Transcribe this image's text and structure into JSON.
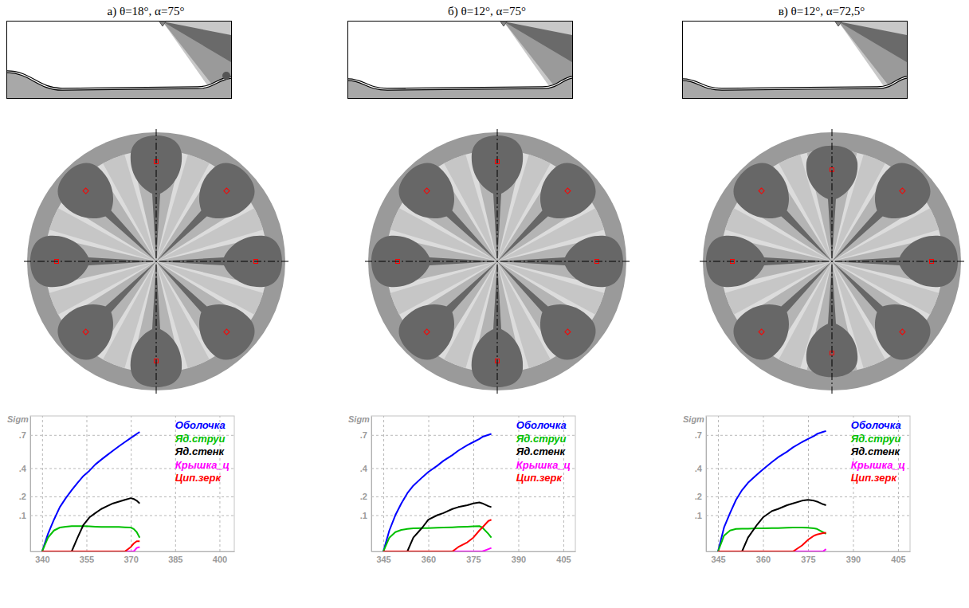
{
  "chart_data": [
    {
      "type": "line",
      "title": "а) θ=18°, α=75°",
      "ylabel": "Sigm",
      "x": [
        340,
        342,
        344,
        346,
        348,
        350,
        352,
        354,
        356,
        358,
        360,
        362,
        364,
        366,
        368,
        370,
        371,
        372,
        373
      ],
      "series": [
        {
          "name": "Оболочка",
          "color": "#0000ff",
          "values": [
            0,
            0.03,
            0.08,
            0.14,
            0.19,
            0.24,
            0.29,
            0.34,
            0.38,
            0.43,
            0.47,
            0.51,
            0.55,
            0.59,
            0.63,
            0.67,
            0.69,
            0.71,
            0.73
          ]
        },
        {
          "name": "Яд.струи",
          "color": "#00c000",
          "values": [
            0,
            0.02,
            0.04,
            0.05,
            0.053,
            0.055,
            0.055,
            0.055,
            0.054,
            0.053,
            0.052,
            0.052,
            0.052,
            0.052,
            0.051,
            0.05,
            0.045,
            0.035,
            0.02
          ]
        },
        {
          "name": "Яд.стенк",
          "color": "#000000",
          "values": [
            0,
            0,
            0,
            0,
            0,
            0,
            0.02,
            0.06,
            0.09,
            0.11,
            0.13,
            0.145,
            0.16,
            0.17,
            0.18,
            0.19,
            0.185,
            0.175,
            0.16
          ]
        },
        {
          "name": "Крышка_ц",
          "color": "#ff00ff",
          "values": [
            0,
            0,
            0,
            0,
            0,
            0,
            0,
            0,
            0,
            0,
            0,
            0,
            0,
            0,
            0,
            0,
            0,
            0.002,
            0.003
          ]
        },
        {
          "name": "Цип.зерк",
          "color": "#ff0000",
          "values": [
            0,
            0,
            0,
            0,
            0,
            0,
            0,
            0,
            0,
            0,
            0,
            0,
            0,
            0,
            0,
            0.003,
            0.008,
            0.012,
            0.012
          ]
        }
      ],
      "xlim": [
        336,
        405
      ],
      "xticks": [
        340,
        355,
        370,
        385,
        400
      ],
      "ylim": [
        0,
        0.9
      ],
      "yticks": [
        {
          "value": 0.1,
          "label": ".1"
        },
        {
          "value": 0.2,
          "label": ".2"
        },
        {
          "value": 0.4,
          "label": ".4"
        },
        {
          "value": 0.7,
          "label": ".7"
        }
      ],
      "grid": true,
      "legend": "upper right"
    },
    {
      "type": "line",
      "title": "б) θ=12°, α=75°",
      "ylabel": "Sigm",
      "x": [
        345,
        347,
        349,
        351,
        353,
        355,
        358,
        360,
        363,
        365,
        368,
        370,
        373,
        375,
        377,
        378,
        380,
        381
      ],
      "series": [
        {
          "name": "Оболочка",
          "color": "#0000ff",
          "values": [
            0,
            0.04,
            0.1,
            0.16,
            0.22,
            0.27,
            0.33,
            0.37,
            0.42,
            0.46,
            0.51,
            0.55,
            0.6,
            0.63,
            0.66,
            0.68,
            0.7,
            0.71
          ]
        },
        {
          "name": "Яд.струи",
          "color": "#00c000",
          "values": [
            0,
            0.02,
            0.035,
            0.042,
            0.045,
            0.047,
            0.048,
            0.048,
            0.049,
            0.05,
            0.051,
            0.052,
            0.053,
            0.054,
            0.055,
            0.05,
            0.03,
            0.02
          ]
        },
        {
          "name": "Яд.стенк",
          "color": "#000000",
          "values": [
            0,
            0,
            0,
            0,
            0,
            0.02,
            0.05,
            0.08,
            0.1,
            0.11,
            0.13,
            0.14,
            0.15,
            0.16,
            0.165,
            0.16,
            0.145,
            0.14
          ]
        },
        {
          "name": "Крышка_ц",
          "color": "#ff00ff",
          "values": [
            0,
            0,
            0,
            0,
            0,
            0,
            0,
            0,
            0,
            0,
            0,
            0,
            0,
            0,
            0,
            0,
            0.001,
            0.002
          ]
        },
        {
          "name": "Цип.зерк",
          "color": "#ff0000",
          "values": [
            0,
            0,
            0,
            0,
            0,
            0,
            0,
            0,
            0,
            0,
            0,
            0.003,
            0.01,
            0.02,
            0.04,
            0.05,
            0.075,
            0.08
          ]
        }
      ],
      "xlim": [
        341,
        409
      ],
      "xticks": [
        345,
        360,
        375,
        390,
        405
      ],
      "ylim": [
        0,
        0.9
      ],
      "yticks": [
        {
          "value": 0.1,
          "label": ".1"
        },
        {
          "value": 0.2,
          "label": ".2"
        },
        {
          "value": 0.4,
          "label": ".4"
        },
        {
          "value": 0.7,
          "label": ".7"
        }
      ],
      "grid": true,
      "legend": "upper right"
    },
    {
      "type": "line",
      "title": "в) θ=12°, α=72,5°",
      "ylabel": "Sigm",
      "x": [
        345,
        347,
        349,
        351,
        353,
        355,
        358,
        360,
        363,
        365,
        368,
        370,
        373,
        375,
        377,
        378,
        380,
        381
      ],
      "series": [
        {
          "name": "Оболочка",
          "color": "#0000ff",
          "values": [
            0,
            0.05,
            0.11,
            0.18,
            0.24,
            0.29,
            0.35,
            0.39,
            0.45,
            0.49,
            0.54,
            0.58,
            0.63,
            0.66,
            0.69,
            0.71,
            0.73,
            0.74
          ]
        },
        {
          "name": "Яд.струи",
          "color": "#00c000",
          "values": [
            0,
            0.025,
            0.04,
            0.045,
            0.046,
            0.046,
            0.047,
            0.047,
            0.048,
            0.048,
            0.049,
            0.05,
            0.05,
            0.049,
            0.047,
            0.045,
            0.035,
            0.03
          ]
        },
        {
          "name": "Яд.стенк",
          "color": "#000000",
          "values": [
            0,
            0,
            0,
            0,
            0,
            0.02,
            0.06,
            0.09,
            0.12,
            0.13,
            0.15,
            0.16,
            0.175,
            0.18,
            0.175,
            0.17,
            0.155,
            0.15
          ]
        },
        {
          "name": "Крышка_ц",
          "color": "#ff00ff",
          "values": [
            0,
            0,
            0,
            0,
            0,
            0,
            0,
            0,
            0,
            0,
            0,
            0,
            0,
            0,
            0,
            0,
            0,
            0.001
          ]
        },
        {
          "name": "Цип.зерк",
          "color": "#ff0000",
          "values": [
            0,
            0,
            0,
            0,
            0,
            0,
            0,
            0,
            0,
            0,
            0,
            0,
            0.005,
            0.015,
            0.025,
            0.028,
            0.032,
            0.033
          ]
        }
      ],
      "xlim": [
        341,
        409
      ],
      "xticks": [
        345,
        360,
        375,
        390,
        405
      ],
      "ylim": [
        0,
        0.9
      ],
      "yticks": [
        {
          "value": 0.1,
          "label": ".1"
        },
        {
          "value": 0.2,
          "label": ".2"
        },
        {
          "value": 0.4,
          "label": ".4"
        },
        {
          "value": 0.7,
          "label": ".7"
        }
      ],
      "grid": true,
      "legend": "upper right"
    }
  ]
}
